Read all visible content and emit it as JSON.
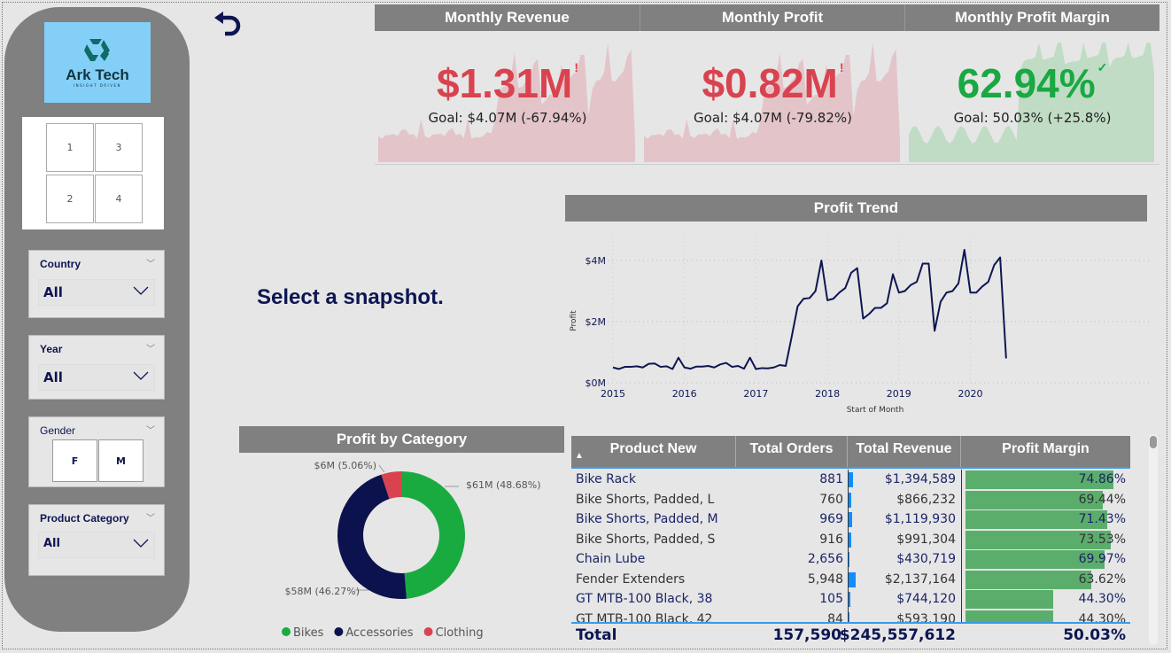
{
  "logo": {
    "name": "Ark Tech",
    "tagline": "INSIGHT DRIVEN",
    "bg": "#84cff8"
  },
  "snapshots": [
    "1",
    "3",
    "2",
    "4"
  ],
  "slicers": {
    "country": {
      "title": "Country",
      "value": "All"
    },
    "year": {
      "title": "Year",
      "value": "All"
    },
    "gender": {
      "title": "Gender",
      "options": [
        "F",
        "M"
      ]
    },
    "category": {
      "title": "Product Category",
      "value": "All"
    }
  },
  "message": "Select a snapshot.",
  "kpis": [
    {
      "title": "Monthly Revenue",
      "value": "$1.31M",
      "status": "!",
      "goal": "Goal: $4.07M (-67.94%)",
      "color": "#d9434f",
      "spark": "#e3c5c9"
    },
    {
      "title": "Monthly Profit",
      "value": "$0.82M",
      "status": "!",
      "goal": "Goal: $4.07M (-79.82%)",
      "color": "#d9434f",
      "spark": "#e3c5c9"
    },
    {
      "title": "Monthly Profit Margin",
      "value": "62.94%",
      "status": "✓",
      "goal": "Goal: 50.03% (+25.8%)",
      "color": "#1aa843",
      "spark": "#c0dcc5"
    }
  ],
  "chart_data": [
    {
      "type": "line",
      "title": "Profit Trend",
      "xlabel": "Start of Month",
      "ylabel": "Profit",
      "x_start": "2015-01",
      "x_ticks": [
        "2015",
        "2016",
        "2017",
        "2018",
        "2019",
        "2020"
      ],
      "y_ticks": [
        "$0M",
        "$2M",
        "$4M"
      ],
      "ylim": [
        0,
        4.8
      ],
      "unit": "$M",
      "grid": true,
      "color": "#0d1652",
      "values": [
        0.5,
        0.45,
        0.52,
        0.52,
        0.54,
        0.5,
        0.62,
        0.63,
        0.52,
        0.54,
        0.45,
        0.82,
        0.5,
        0.46,
        0.53,
        0.53,
        0.55,
        0.5,
        0.6,
        0.65,
        0.52,
        0.55,
        0.46,
        0.82,
        0.45,
        0.48,
        0.47,
        0.5,
        0.58,
        0.55,
        1.5,
        2.5,
        2.75,
        2.77,
        3.0,
        4.0,
        2.7,
        2.75,
        2.95,
        3.1,
        3.6,
        3.75,
        2.1,
        2.25,
        2.45,
        2.45,
        2.6,
        3.55,
        2.95,
        3.0,
        3.2,
        3.3,
        3.9,
        3.9,
        1.7,
        2.65,
        2.95,
        3.0,
        3.25,
        4.35,
        2.95,
        2.95,
        3.15,
        3.3,
        3.85,
        4.1,
        0.8
      ]
    },
    {
      "type": "pie",
      "title": "Profit by Category",
      "categories": [
        "Bikes",
        "Accessories",
        "Clothing"
      ],
      "values": [
        48.68,
        46.27,
        5.06
      ],
      "labels": [
        "$61M (48.68%)",
        "$58M (46.27%)",
        "$6M (5.06%)"
      ],
      "colors": [
        "#1aab40",
        "#0b124e",
        "#d9434f"
      ],
      "legend": "bottom"
    }
  ],
  "table": {
    "columns": [
      "Product New",
      "Total Orders",
      "Total Revenue",
      "Profit Margin"
    ],
    "rows": [
      {
        "product": "Bike Rack",
        "orders": "881",
        "revenue": "$1,394,589",
        "margin": "74.86%",
        "rev": 1394589,
        "pm": 74.86
      },
      {
        "product": "Bike Shorts, Padded, L",
        "orders": "760",
        "revenue": "$866,232",
        "margin": "69.44%",
        "rev": 866232,
        "pm": 69.44
      },
      {
        "product": "Bike Shorts, Padded, M",
        "orders": "969",
        "revenue": "$1,119,930",
        "margin": "71.43%",
        "rev": 1119930,
        "pm": 71.43
      },
      {
        "product": "Bike Shorts, Padded, S",
        "orders": "916",
        "revenue": "$991,304",
        "margin": "73.53%",
        "rev": 991304,
        "pm": 73.53
      },
      {
        "product": "Chain Lube",
        "orders": "2,656",
        "revenue": "$430,719",
        "margin": "69.97%",
        "rev": 430719,
        "pm": 69.97
      },
      {
        "product": "Fender Extenders",
        "orders": "5,948",
        "revenue": "$2,137,164",
        "margin": "63.62%",
        "rev": 2137164,
        "pm": 63.62
      },
      {
        "product": "GT MTB-100 Black, 38",
        "orders": "105",
        "revenue": "$744,120",
        "margin": "44.30%",
        "rev": 744120,
        "pm": 44.3
      },
      {
        "product": "GT MTB-100 Black, 42",
        "orders": "84",
        "revenue": "$593,190",
        "margin": "44.30%",
        "rev": 593190,
        "pm": 44.3
      }
    ],
    "total": {
      "label": "Total",
      "orders": "157,590",
      "revenue": "$245,557,612",
      "margin": "50.03%"
    },
    "bar_colors": {
      "revenue": "#118dff",
      "margin": "#5bad6b"
    }
  }
}
